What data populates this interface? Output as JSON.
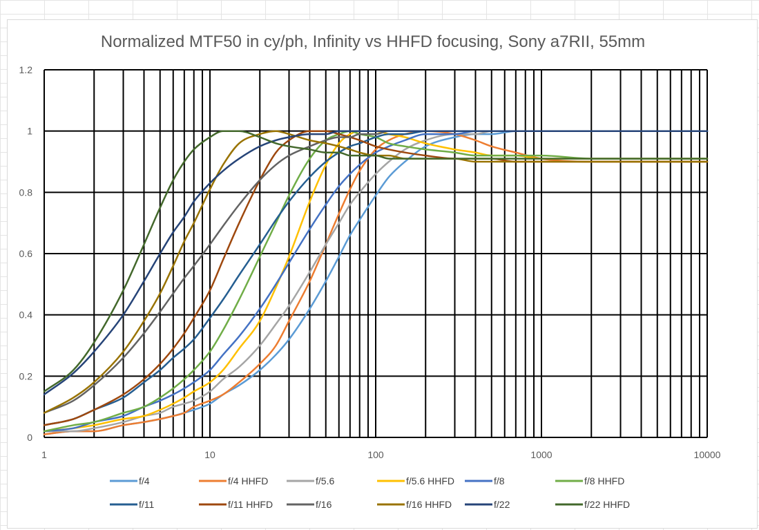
{
  "chart_data": {
    "type": "line",
    "title": "Normalized MTF50 in cy/ph, Infinity vs HHFD focusing, Sony a7RII, 55mm",
    "xlabel": "",
    "ylabel": "",
    "x_scale": "log",
    "xlim": [
      1,
      10000
    ],
    "ylim": [
      0,
      1.2
    ],
    "grid": "major and minor log gridlines on",
    "legend_position": "bottom",
    "x_tick_labels": [
      "1",
      "10",
      "100",
      "1000",
      "10000"
    ],
    "y_tick_labels": [
      "0",
      "0.2",
      "0.4",
      "0.6",
      "0.8",
      "1",
      "1.2"
    ],
    "x": [
      1,
      1.5,
      2,
      3,
      4,
      5,
      6,
      7,
      8,
      10,
      12,
      15,
      20,
      25,
      30,
      40,
      50,
      60,
      70,
      80,
      100,
      120,
      150,
      200,
      300,
      400,
      500,
      700,
      1000,
      2000,
      5000,
      10000
    ],
    "series": [
      {
        "name": "f/4",
        "color": "#5B9BD5",
        "values": [
          0.01,
          0.02,
          0.02,
          0.04,
          0.05,
          0.06,
          0.07,
          0.08,
          0.09,
          0.11,
          0.14,
          0.17,
          0.22,
          0.27,
          0.32,
          0.42,
          0.51,
          0.59,
          0.66,
          0.71,
          0.79,
          0.85,
          0.9,
          0.95,
          0.98,
          0.99,
          0.99,
          1.0,
          1.0,
          1.0,
          1.0,
          1.0
        ]
      },
      {
        "name": "f/4 HHFD",
        "color": "#ED7D31",
        "values": [
          0.01,
          0.02,
          0.02,
          0.04,
          0.05,
          0.06,
          0.07,
          0.08,
          0.1,
          0.12,
          0.14,
          0.18,
          0.24,
          0.3,
          0.38,
          0.51,
          0.63,
          0.73,
          0.81,
          0.87,
          0.94,
          0.97,
          0.99,
          1.0,
          0.99,
          0.97,
          0.95,
          0.93,
          0.91,
          0.9,
          0.9,
          0.9
        ]
      },
      {
        "name": "f/5.6",
        "color": "#A5A5A5",
        "values": [
          0.02,
          0.02,
          0.03,
          0.05,
          0.07,
          0.08,
          0.1,
          0.11,
          0.12,
          0.15,
          0.19,
          0.23,
          0.3,
          0.37,
          0.43,
          0.54,
          0.63,
          0.7,
          0.76,
          0.8,
          0.86,
          0.9,
          0.94,
          0.97,
          0.99,
          0.99,
          1.0,
          1.0,
          1.0,
          1.0,
          1.0,
          1.0
        ]
      },
      {
        "name": "f/5.6 HHFD",
        "color": "#FFC000",
        "values": [
          0.02,
          0.03,
          0.04,
          0.06,
          0.07,
          0.09,
          0.11,
          0.13,
          0.15,
          0.18,
          0.22,
          0.29,
          0.38,
          0.49,
          0.59,
          0.77,
          0.89,
          0.96,
          0.99,
          1.0,
          1.0,
          0.99,
          0.98,
          0.96,
          0.94,
          0.93,
          0.92,
          0.92,
          0.91,
          0.91,
          0.91,
          0.91
        ]
      },
      {
        "name": "f/8",
        "color": "#4472C4",
        "values": [
          0.02,
          0.03,
          0.05,
          0.07,
          0.1,
          0.12,
          0.14,
          0.16,
          0.18,
          0.22,
          0.27,
          0.33,
          0.42,
          0.5,
          0.57,
          0.68,
          0.76,
          0.82,
          0.86,
          0.89,
          0.93,
          0.95,
          0.97,
          0.99,
          0.99,
          1.0,
          1.0,
          1.0,
          1.0,
          1.0,
          1.0,
          1.0
        ]
      },
      {
        "name": "f/8 HHFD",
        "color": "#70AD47",
        "values": [
          0.02,
          0.04,
          0.05,
          0.08,
          0.1,
          0.13,
          0.16,
          0.19,
          0.22,
          0.28,
          0.35,
          0.45,
          0.59,
          0.7,
          0.79,
          0.91,
          0.97,
          0.99,
          1.0,
          0.99,
          0.98,
          0.96,
          0.95,
          0.94,
          0.93,
          0.92,
          0.92,
          0.92,
          0.92,
          0.91,
          0.91,
          0.91
        ]
      },
      {
        "name": "f/11",
        "color": "#255E91",
        "values": [
          0.04,
          0.06,
          0.09,
          0.13,
          0.18,
          0.22,
          0.26,
          0.29,
          0.32,
          0.39,
          0.45,
          0.53,
          0.63,
          0.71,
          0.77,
          0.85,
          0.9,
          0.93,
          0.95,
          0.96,
          0.98,
          0.99,
          0.99,
          1.0,
          1.0,
          1.0,
          1.0,
          1.0,
          1.0,
          1.0,
          1.0,
          1.0
        ]
      },
      {
        "name": "f/11 HHFD",
        "color": "#9E480E",
        "values": [
          0.04,
          0.06,
          0.09,
          0.14,
          0.19,
          0.24,
          0.29,
          0.34,
          0.39,
          0.48,
          0.58,
          0.7,
          0.84,
          0.93,
          0.97,
          1.0,
          1.0,
          0.99,
          0.98,
          0.97,
          0.95,
          0.94,
          0.93,
          0.92,
          0.91,
          0.91,
          0.91,
          0.9,
          0.9,
          0.9,
          0.9,
          0.9
        ]
      },
      {
        "name": "f/16",
        "color": "#636363",
        "values": [
          0.08,
          0.12,
          0.17,
          0.26,
          0.34,
          0.41,
          0.47,
          0.52,
          0.56,
          0.63,
          0.69,
          0.76,
          0.84,
          0.89,
          0.92,
          0.95,
          0.97,
          0.98,
          0.98,
          0.99,
          0.99,
          1.0,
          1.0,
          1.0,
          1.0,
          1.0,
          1.0,
          1.0,
          1.0,
          1.0,
          1.0,
          1.0
        ]
      },
      {
        "name": "f/16 HHFD",
        "color": "#997300",
        "values": [
          0.08,
          0.13,
          0.18,
          0.28,
          0.38,
          0.47,
          0.56,
          0.64,
          0.7,
          0.81,
          0.89,
          0.96,
          0.99,
          1.0,
          0.99,
          0.97,
          0.96,
          0.95,
          0.94,
          0.93,
          0.92,
          0.92,
          0.91,
          0.91,
          0.91,
          0.9,
          0.9,
          0.9,
          0.9,
          0.9,
          0.9,
          0.9
        ]
      },
      {
        "name": "f/22",
        "color": "#264478",
        "values": [
          0.14,
          0.21,
          0.28,
          0.4,
          0.51,
          0.6,
          0.67,
          0.72,
          0.77,
          0.83,
          0.87,
          0.91,
          0.95,
          0.97,
          0.98,
          0.99,
          0.99,
          1.0,
          1.0,
          1.0,
          1.0,
          1.0,
          1.0,
          1.0,
          1.0,
          1.0,
          1.0,
          1.0,
          1.0,
          1.0,
          1.0,
          1.0
        ]
      },
      {
        "name": "f/22 HHFD",
        "color": "#43682B",
        "values": [
          0.15,
          0.22,
          0.31,
          0.48,
          0.63,
          0.75,
          0.84,
          0.9,
          0.94,
          0.98,
          1.0,
          1.0,
          0.98,
          0.96,
          0.95,
          0.94,
          0.93,
          0.93,
          0.92,
          0.92,
          0.92,
          0.91,
          0.91,
          0.91,
          0.91,
          0.91,
          0.91,
          0.91,
          0.91,
          0.91,
          0.91,
          0.91
        ]
      }
    ]
  }
}
